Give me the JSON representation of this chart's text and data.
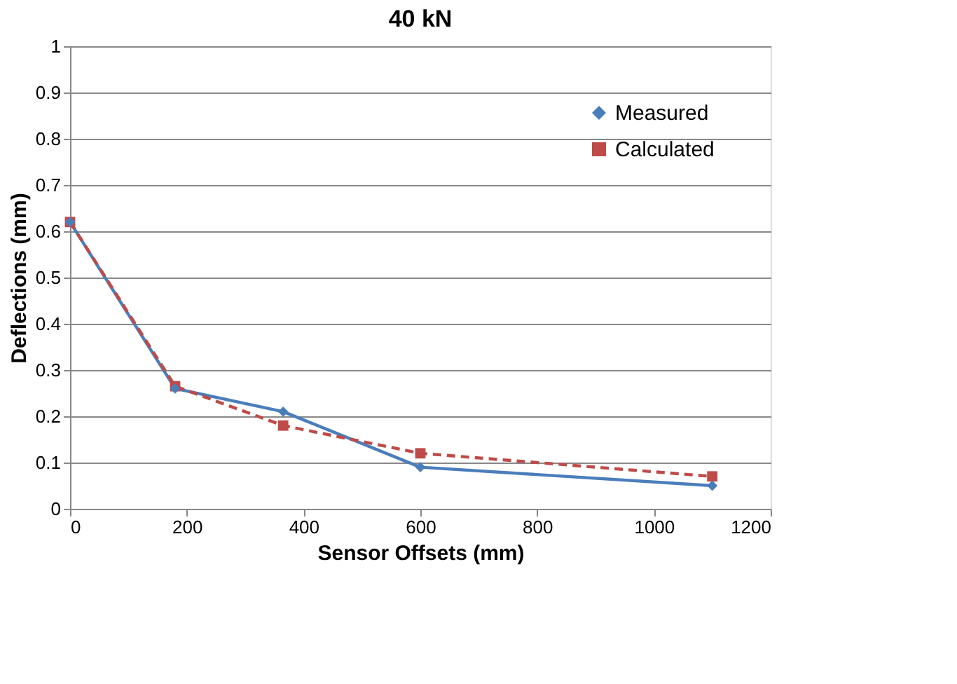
{
  "chart_data": {
    "type": "line",
    "title": "40 kN",
    "xlabel": "Sensor Offsets (mm)",
    "ylabel": "Deflections (mm)",
    "x": [
      0,
      180,
      365,
      600,
      1100
    ],
    "series": [
      {
        "name": "Measured",
        "color": "#4a7ebb",
        "marker": "diamond",
        "line_style": "solid",
        "values": [
          0.62,
          0.26,
          0.21,
          0.09,
          0.05
        ]
      },
      {
        "name": "Calculated",
        "color": "#be4b48",
        "marker": "square",
        "line_style": "dashed",
        "values": [
          0.62,
          0.265,
          0.18,
          0.12,
          0.07
        ]
      }
    ],
    "xlim": [
      0,
      1200
    ],
    "xticks": [
      0,
      200,
      400,
      600,
      800,
      1000,
      1200
    ],
    "ylim": [
      0,
      1
    ],
    "yticks": [
      0,
      0.1,
      0.2,
      0.3,
      0.4,
      0.5,
      0.6,
      0.7,
      0.8,
      0.9,
      1
    ],
    "grid": "y",
    "legend": "top right"
  }
}
